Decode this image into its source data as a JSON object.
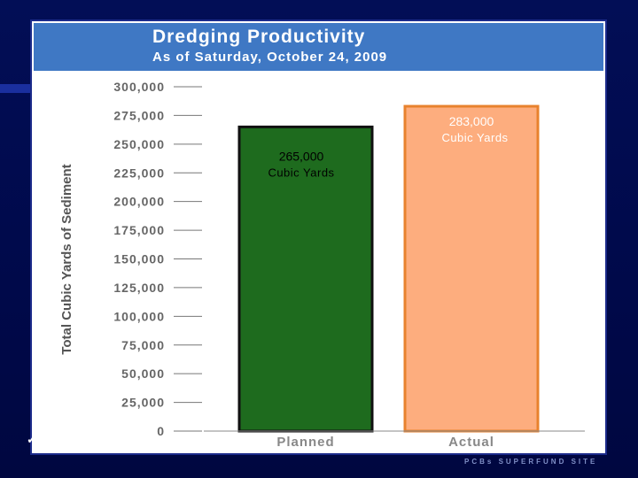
{
  "header": {
    "title": "Dredging Productivity",
    "subtitle": "As of Saturday, October 24, 2009"
  },
  "footer": {
    "site_text": "PCBs SUPERFUND SITE"
  },
  "colors": {
    "planned_fill": "#1e6b1e",
    "actual_fill": "#fdad7e",
    "actual_border": "#e8822e",
    "bar_border": "#111111",
    "title_bar": "#3f78c4",
    "background": "#000c4a"
  },
  "chart_data": {
    "type": "bar",
    "title": "Dredging Productivity",
    "subtitle": "As of Saturday, October 24, 2009",
    "xlabel": "",
    "ylabel": "Total Cubic Yards of Sediment",
    "ylim": [
      0,
      300000
    ],
    "yticks": [
      "0",
      "25,000",
      "50,000",
      "75,000",
      "100,000",
      "125,000",
      "150,000",
      "175,000",
      "200,000",
      "225,000",
      "250,000",
      "275,000",
      "300,000"
    ],
    "categories": [
      "Planned",
      "Actual"
    ],
    "values": [
      265000,
      283000
    ],
    "data_labels": [
      {
        "value_text": "265,000",
        "unit_text": "Cubic Yards"
      },
      {
        "value_text": "283,000",
        "unit_text": "Cubic Yards"
      }
    ],
    "grid": false,
    "legend": "none"
  }
}
